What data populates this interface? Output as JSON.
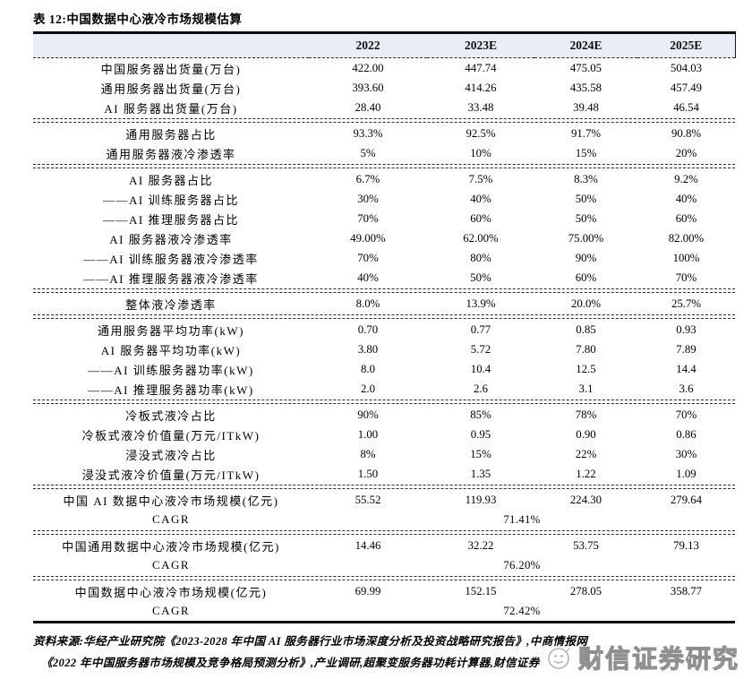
{
  "title": "表 12:中国数据中心液冷市场规模估算",
  "columns": [
    "2022",
    "2023E",
    "2024E",
    "2025E"
  ],
  "sections": [
    {
      "rows": [
        {
          "label": "中国服务器出货量(万台)",
          "values": [
            "422.00",
            "447.74",
            "475.05",
            "504.03"
          ]
        },
        {
          "label": "通用服务器出货量(万台)",
          "values": [
            "393.60",
            "414.26",
            "435.58",
            "457.49"
          ]
        },
        {
          "label": "AI 服务器出货量(万台)",
          "values": [
            "28.40",
            "33.48",
            "39.48",
            "46.54"
          ]
        }
      ]
    },
    {
      "rows": [
        {
          "label": "通用服务器占比",
          "values": [
            "93.3%",
            "92.5%",
            "91.7%",
            "90.8%"
          ]
        },
        {
          "label": "通用服务器液冷渗透率",
          "values": [
            "5%",
            "10%",
            "15%",
            "20%"
          ]
        }
      ]
    },
    {
      "rows": [
        {
          "label": "AI 服务器占比",
          "values": [
            "6.7%",
            "7.5%",
            "8.3%",
            "9.2%"
          ]
        },
        {
          "label": "——AI 训练服务器占比",
          "values": [
            "30%",
            "40%",
            "50%",
            "40%"
          ]
        },
        {
          "label": "——AI 推理服务器占比",
          "values": [
            "70%",
            "60%",
            "50%",
            "60%"
          ]
        },
        {
          "label": "AI 服务器液冷渗透率",
          "values": [
            "49.00%",
            "62.00%",
            "75.00%",
            "82.00%"
          ]
        },
        {
          "label": "——AI 训练服务器液冷渗透率",
          "values": [
            "70%",
            "80%",
            "90%",
            "100%"
          ]
        },
        {
          "label": "——AI 推理服务器液冷渗透率",
          "values": [
            "40%",
            "50%",
            "60%",
            "70%"
          ]
        }
      ]
    },
    {
      "rows": [
        {
          "label": "整体液冷渗透率",
          "values": [
            "8.0%",
            "13.9%",
            "20.0%",
            "25.7%"
          ]
        }
      ]
    },
    {
      "rows": [
        {
          "label": "通用服务器平均功率(kW)",
          "values": [
            "0.70",
            "0.77",
            "0.85",
            "0.93"
          ]
        },
        {
          "label": "AI 服务器平均功率(kW)",
          "values": [
            "3.80",
            "5.72",
            "7.80",
            "7.89"
          ]
        },
        {
          "label": "——AI 训练服务器功率(kW)",
          "values": [
            "8.0",
            "10.4",
            "12.5",
            "14.4"
          ]
        },
        {
          "label": "——AI 推理服务器功率(kW)",
          "values": [
            "2.0",
            "2.6",
            "3.1",
            "3.6"
          ]
        }
      ]
    },
    {
      "rows": [
        {
          "label": "冷板式液冷占比",
          "values": [
            "90%",
            "85%",
            "78%",
            "70%"
          ]
        },
        {
          "label": "冷板式液冷价值量(万元/ITkW)",
          "values": [
            "1.00",
            "0.95",
            "0.90",
            "0.86"
          ]
        },
        {
          "label": "浸没式液冷占比",
          "values": [
            "8%",
            "15%",
            "22%",
            "30%"
          ]
        },
        {
          "label": "浸没式液冷价值量(万元/ITkW)",
          "values": [
            "1.50",
            "1.35",
            "1.22",
            "1.09"
          ]
        }
      ]
    },
    {
      "rows": [
        {
          "label": "中国 AI 数据中心液冷市场规模(亿元)",
          "values": [
            "55.52",
            "119.93",
            "224.30",
            "279.64"
          ]
        },
        {
          "label": "CAGR",
          "cagr": "71.41%"
        }
      ]
    },
    {
      "rows": [
        {
          "label": "中国通用数据中心液冷市场规模(亿元)",
          "values": [
            "14.46",
            "32.22",
            "53.75",
            "79.13"
          ]
        },
        {
          "label": "CAGR",
          "cagr": "76.20%"
        }
      ]
    },
    {
      "rows": [
        {
          "label": "中国数据中心液冷市场规模(亿元)",
          "values": [
            "69.99",
            "152.15",
            "278.05",
            "358.77"
          ]
        },
        {
          "label": "CAGR",
          "cagr": "72.42%"
        }
      ]
    }
  ],
  "footer": {
    "line1": "资料来源:华经产业研究院《2023-2028 年中国 AI 服务器行业市场深度分析及投资战略研究报告》,中商情报网",
    "line2": "《2022 年中国服务器市场规模及竞争格局预测分析》,产业调研,超聚变服务器功耗计算器,财信证券"
  },
  "watermark": {
    "text": "财信证券研究",
    "logo": "smiley-circle-icon",
    "stroke_color": "#8f8f8f"
  },
  "colors": {
    "border": "#0c0c0c",
    "header_bg": "#e9edf5",
    "dash": "#2a2a2a"
  }
}
